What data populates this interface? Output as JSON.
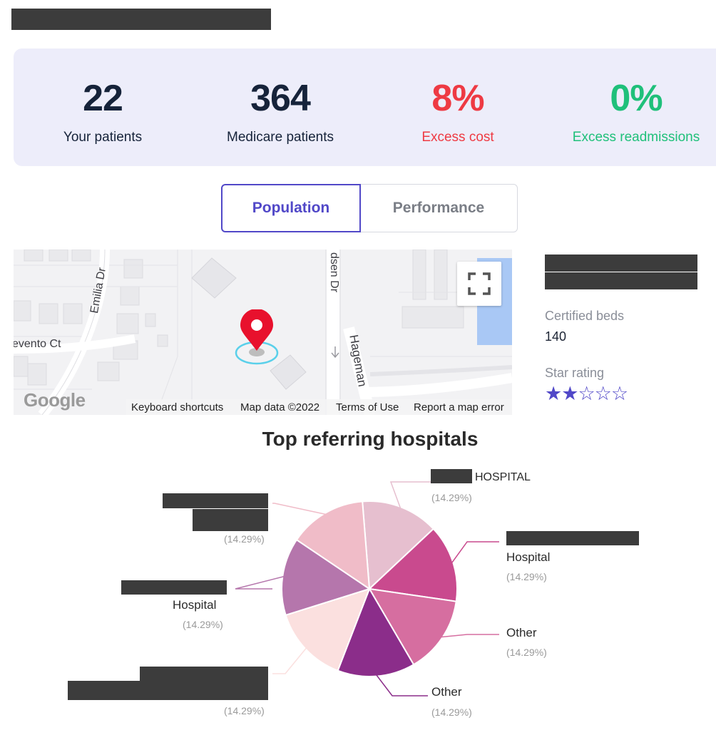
{
  "stats": [
    {
      "value": "22",
      "label": "Your patients",
      "color": "#16233a"
    },
    {
      "value": "364",
      "label": "Medicare patients",
      "color": "#16233a"
    },
    {
      "value": "8%",
      "label": "Excess cost",
      "color": "#ee3a43"
    },
    {
      "value": "0%",
      "label": "Excess readmissions",
      "color": "#1fc07a"
    }
  ],
  "tabs": {
    "population": "Population",
    "performance": "Performance",
    "active": "population"
  },
  "map": {
    "streets": [
      "Emilia Dr",
      "dsen Dr",
      "Hageman",
      "evento Ct"
    ],
    "logo": "Google",
    "footer": [
      "Keyboard shortcuts",
      "Map data ©2022",
      "Terms of Use",
      "Report a map error"
    ],
    "marker_icon": "location-pin-icon",
    "fullscreen_icon": "fullscreen-icon"
  },
  "facility": {
    "beds_label": "Certified beds",
    "beds_value": "140",
    "rating_label": "Star rating",
    "rating": 2,
    "rating_max": 5
  },
  "chart_data": {
    "type": "pie",
    "title": "Top referring hospitals",
    "slices": [
      {
        "label": "HOSPITAL",
        "percent_label": "(14.29%)",
        "value": 14.29,
        "color": "#e6bfcf"
      },
      {
        "label": "Hospital",
        "percent_label": "(14.29%)",
        "value": 14.29,
        "color": "#c94a8e"
      },
      {
        "label": "Other",
        "percent_label": "(14.29%)",
        "value": 14.29,
        "color": "#d66ea0"
      },
      {
        "label": "Other",
        "percent_label": "(14.29%)",
        "value": 14.29,
        "color": "#8b2d8a"
      },
      {
        "label": "",
        "percent_label": "(14.29%)",
        "value": 14.29,
        "color": "#fbe0df"
      },
      {
        "label": "Hospital",
        "percent_label": "(14.29%)",
        "value": 14.29,
        "color": "#b576ac"
      },
      {
        "label": "",
        "percent_label": "(14.29%)",
        "value": 14.29,
        "color": "#f0bcc8"
      }
    ]
  }
}
